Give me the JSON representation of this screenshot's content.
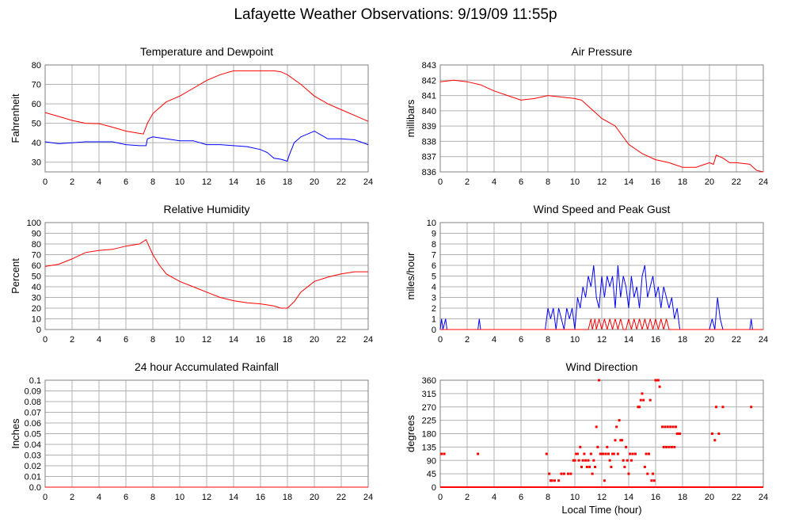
{
  "page": {
    "title": "Lafayette Weather Observations: 9/19/09 11:55p"
  },
  "colors": {
    "red": "#ff0000",
    "blue": "#0000ff",
    "grid": "#b0b0b0",
    "frame": "#808080"
  },
  "chart_data": [
    {
      "type": "line",
      "title": "Temperature and Dewpoint",
      "xlabel": "",
      "ylabel": "Fahrenheit",
      "xlim": [
        0,
        24
      ],
      "ylim": [
        25,
        80
      ],
      "xticks": [
        "0",
        "2",
        "4",
        "6",
        "8",
        "10",
        "12",
        "14",
        "16",
        "18",
        "20",
        "22",
        "24"
      ],
      "yticks": [
        "30",
        "40",
        "50",
        "60",
        "70",
        "80"
      ],
      "grid": true,
      "series": [
        {
          "color": "#ff0000",
          "x": [
            0,
            1,
            2,
            3,
            4,
            5,
            6,
            7,
            7.3,
            7.6,
            8,
            8.5,
            9,
            10,
            11,
            12,
            13,
            14,
            15,
            16,
            17,
            17.5,
            18,
            19,
            20,
            21,
            22,
            23,
            24
          ],
          "y": [
            55.5,
            53.5,
            51.5,
            50,
            49.8,
            48,
            46,
            44.8,
            44.5,
            50,
            55,
            58,
            61,
            64,
            68,
            72,
            75,
            77,
            77,
            77,
            77,
            76.5,
            75,
            70,
            64,
            60,
            57,
            54,
            51
          ]
        },
        {
          "color": "#0000ff",
          "x": [
            0,
            1,
            2,
            3,
            4,
            5,
            6,
            7,
            7.5,
            7.6,
            8,
            9,
            10,
            11,
            12,
            13,
            14,
            15,
            16,
            16.5,
            17,
            17.5,
            18,
            18.1,
            18.5,
            19,
            20,
            20.5,
            21,
            22,
            23,
            24
          ],
          "y": [
            40.5,
            39.5,
            40,
            40.5,
            40.5,
            40.5,
            39,
            38.5,
            38.5,
            42,
            43,
            42,
            41,
            41,
            39,
            39,
            38.5,
            38,
            36.5,
            35,
            32,
            31.5,
            30.5,
            33,
            40,
            43,
            46,
            44,
            42,
            42,
            41.5,
            39
          ]
        }
      ]
    },
    {
      "type": "line",
      "title": "Air Pressure",
      "xlabel": "",
      "ylabel": "millibars",
      "xlim": [
        0,
        24
      ],
      "ylim": [
        836,
        843
      ],
      "xticks": [
        "0",
        "2",
        "4",
        "6",
        "8",
        "10",
        "12",
        "14",
        "16",
        "18",
        "20",
        "22",
        "24"
      ],
      "yticks": [
        "836",
        "837",
        "838",
        "839",
        "840",
        "841",
        "842",
        "843"
      ],
      "grid": true,
      "series": [
        {
          "color": "#ff0000",
          "x": [
            0,
            1,
            2,
            3,
            4,
            5,
            6,
            7,
            8,
            9,
            10,
            10.5,
            11,
            12,
            13,
            14,
            15,
            16,
            17,
            18,
            19,
            20,
            20.3,
            20.5,
            21,
            21.5,
            22,
            23,
            23.5,
            24
          ],
          "y": [
            841.9,
            842,
            841.9,
            841.7,
            841.3,
            841,
            840.7,
            840.8,
            841,
            840.9,
            840.8,
            840.7,
            840.3,
            839.5,
            839,
            837.8,
            837.2,
            836.8,
            836.6,
            836.3,
            836.3,
            836.6,
            836.5,
            837.1,
            836.9,
            836.6,
            836.6,
            836.5,
            836.1,
            836.0
          ]
        }
      ]
    },
    {
      "type": "line",
      "title": "Relative Humidity",
      "xlabel": "",
      "ylabel": "Percent",
      "xlim": [
        0,
        24
      ],
      "ylim": [
        0,
        100
      ],
      "xticks": [
        "0",
        "2",
        "4",
        "6",
        "8",
        "10",
        "12",
        "14",
        "16",
        "18",
        "20",
        "22",
        "24"
      ],
      "yticks": [
        "0",
        "10",
        "20",
        "30",
        "40",
        "50",
        "60",
        "70",
        "80",
        "90",
        "100"
      ],
      "grid": true,
      "series": [
        {
          "color": "#ff0000",
          "x": [
            0,
            1,
            2,
            3,
            4,
            5,
            6,
            7,
            7.5,
            8,
            8.5,
            9,
            10,
            11,
            12,
            13,
            14,
            15,
            16,
            17,
            17.5,
            18,
            18.5,
            19,
            20,
            21,
            22,
            23,
            24
          ],
          "y": [
            59,
            61,
            66,
            72,
            74,
            75,
            78,
            80,
            84,
            70,
            60,
            52,
            45,
            40,
            35,
            30,
            27,
            25,
            24,
            22,
            20,
            20,
            26,
            35,
            45,
            49,
            52,
            54,
            54
          ]
        }
      ]
    },
    {
      "type": "line",
      "title": "Wind Speed and Peak Gust",
      "xlabel": "",
      "ylabel": "miles/hour",
      "xlim": [
        0,
        24
      ],
      "ylim": [
        0,
        10
      ],
      "xticks": [
        "0",
        "2",
        "4",
        "6",
        "8",
        "10",
        "12",
        "14",
        "16",
        "18",
        "20",
        "22",
        "24"
      ],
      "yticks": [
        "0",
        "1",
        "2",
        "3",
        "4",
        "5",
        "6",
        "7",
        "8",
        "9",
        "10"
      ],
      "grid": true,
      "series": [
        {
          "color": "#0000ff",
          "x": [
            0,
            0.1,
            0.2,
            0.4,
            0.5,
            2.8,
            2.9,
            3.0,
            7.8,
            8.0,
            8.2,
            8.4,
            8.6,
            8.8,
            9.0,
            9.2,
            9.4,
            9.6,
            9.8,
            10.0,
            10.2,
            10.4,
            10.6,
            10.8,
            11.0,
            11.2,
            11.4,
            11.6,
            11.8,
            12.0,
            12.2,
            12.4,
            12.6,
            12.8,
            13.0,
            13.2,
            13.4,
            13.6,
            13.8,
            14.0,
            14.2,
            14.4,
            14.6,
            14.8,
            15.0,
            15.2,
            15.4,
            15.6,
            15.8,
            16.0,
            16.2,
            16.4,
            16.6,
            16.8,
            17.0,
            17.2,
            17.4,
            17.6,
            17.8,
            18.0,
            20.0,
            20.2,
            20.4,
            20.6,
            20.8,
            21.0,
            23.0,
            23.1,
            23.2,
            24.0
          ],
          "y": [
            0,
            1,
            0,
            1,
            0,
            0,
            1,
            0,
            0,
            2,
            1,
            2,
            0,
            2,
            1,
            0,
            2,
            1,
            2,
            0,
            3,
            2,
            4,
            3,
            5,
            4,
            6,
            3,
            2,
            5,
            3,
            5,
            4,
            5,
            2,
            6,
            3,
            5,
            4,
            2,
            5,
            3,
            4,
            2,
            5,
            6,
            3,
            4,
            5,
            3,
            4,
            2,
            4,
            3,
            2,
            3,
            1,
            2,
            0,
            0,
            0,
            1,
            0,
            3,
            1,
            0,
            0,
            1,
            0,
            0
          ]
        },
        {
          "color": "#ff0000",
          "x": [
            0,
            11.0,
            11.2,
            11.3,
            11.5,
            11.6,
            11.8,
            12.0,
            12.2,
            12.4,
            12.6,
            12.8,
            13.0,
            13.2,
            13.4,
            13.6,
            13.8,
            14.0,
            14.2,
            14.4,
            14.6,
            14.8,
            15.0,
            15.2,
            15.4,
            15.6,
            15.8,
            16.0,
            16.2,
            16.4,
            16.6,
            16.8,
            17.0,
            17.2,
            24
          ],
          "y": [
            0,
            0,
            1,
            0,
            1,
            0,
            1,
            0,
            1,
            0,
            1,
            0,
            1,
            0,
            1,
            0,
            0,
            1,
            0,
            1,
            0,
            1,
            0,
            1,
            0,
            1,
            0,
            1,
            0,
            1,
            0,
            1,
            0,
            0,
            0
          ]
        }
      ]
    },
    {
      "type": "line",
      "title": "24 hour Accumulated Rainfall",
      "xlabel": "",
      "ylabel": "Inches",
      "xlim": [
        0,
        24
      ],
      "ylim": [
        0,
        0.1
      ],
      "xticks": [
        "0",
        "2",
        "4",
        "6",
        "8",
        "10",
        "12",
        "14",
        "16",
        "18",
        "20",
        "22",
        "24"
      ],
      "yticks": [
        "0.0",
        "0.01",
        "0.02",
        "0.03",
        "0.04",
        "0.05",
        "0.06",
        "0.07",
        "0.08",
        "0.09",
        "0.1"
      ],
      "grid": true,
      "series": [
        {
          "color": "#ff0000",
          "x": [
            0,
            24
          ],
          "y": [
            0,
            0
          ]
        }
      ]
    },
    {
      "type": "scatter",
      "title": "Wind Direction",
      "xlabel": "Local Time (hour)",
      "ylabel": "degrees",
      "xlim": [
        0,
        24
      ],
      "ylim": [
        0,
        360
      ],
      "xticks": [
        "0",
        "2",
        "4",
        "6",
        "8",
        "10",
        "12",
        "14",
        "16",
        "18",
        "20",
        "22",
        "24"
      ],
      "yticks": [
        "0",
        "45",
        "90",
        "135",
        "180",
        "225",
        "270",
        "315",
        "360"
      ],
      "grid": true,
      "series": [
        {
          "color": "#ff0000",
          "x": [
            0.1,
            0.3,
            2.8,
            7.9,
            8.1,
            8.2,
            8.3,
            8.5,
            8.8,
            9.0,
            9.2,
            9.5,
            9.7,
            9.9,
            10.0,
            10.1,
            10.2,
            10.3,
            10.4,
            10.5,
            10.6,
            10.7,
            10.8,
            10.9,
            11.0,
            11.1,
            11.2,
            11.3,
            11.4,
            11.5,
            11.6,
            11.7,
            11.8,
            11.9,
            12.0,
            12.1,
            12.2,
            12.3,
            12.4,
            12.5,
            12.6,
            12.7,
            12.8,
            12.9,
            13.0,
            13.1,
            13.2,
            13.3,
            13.4,
            13.5,
            13.6,
            13.7,
            13.8,
            13.9,
            14.0,
            14.1,
            14.2,
            14.3,
            14.5,
            14.7,
            14.8,
            14.9,
            15.0,
            15.1,
            15.2,
            15.3,
            15.4,
            15.5,
            15.6,
            15.7,
            15.8,
            15.9,
            16.0,
            16.1,
            16.2,
            16.3,
            16.5,
            16.6,
            16.7,
            16.8,
            16.9,
            17.0,
            17.1,
            17.2,
            17.3,
            17.4,
            17.5,
            17.6,
            17.7,
            17.8,
            20.2,
            20.4,
            20.5,
            20.7,
            21.0,
            23.1
          ],
          "y": [
            112,
            112,
            112,
            112,
            45,
            22,
            22,
            22,
            22,
            45,
            45,
            45,
            45,
            90,
            90,
            112,
            112,
            90,
            135,
            68,
            90,
            112,
            90,
            68,
            90,
            68,
            112,
            45,
            90,
            68,
            203,
            135,
            360,
            112,
            112,
            112,
            22,
            112,
            135,
            112,
            90,
            68,
            112,
            112,
            158,
            203,
            112,
            225,
            158,
            158,
            90,
            68,
            135,
            90,
            45,
            112,
            90,
            112,
            112,
            270,
            270,
            293,
            315,
            293,
            68,
            112,
            45,
            112,
            293,
            22,
            45,
            22,
            360,
            360,
            360,
            338,
            203,
            135,
            203,
            135,
            203,
            135,
            203,
            135,
            203,
            135,
            203,
            180,
            180,
            180,
            180,
            158,
            270,
            180,
            270,
            270
          ]
        }
      ]
    }
  ]
}
